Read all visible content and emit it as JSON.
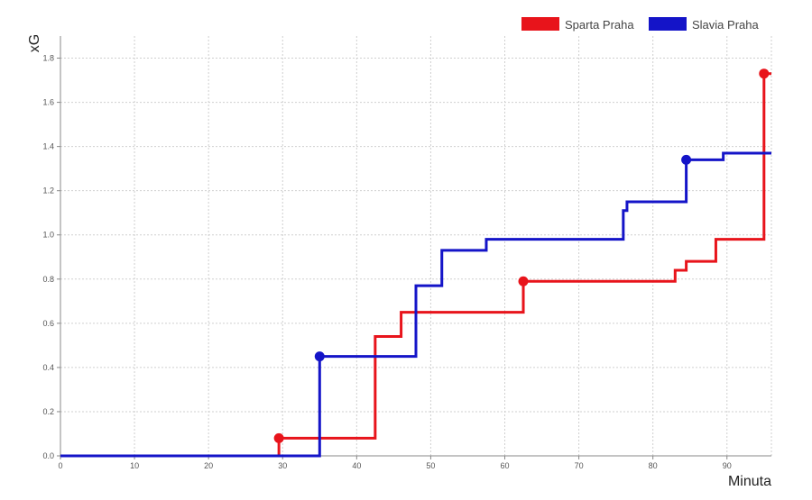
{
  "chart_data": {
    "type": "line",
    "step": true,
    "title": "",
    "xlabel": "Minuta",
    "ylabel": "xG",
    "xlim": [
      0,
      96
    ],
    "ylim": [
      0,
      1.9
    ],
    "xticks": [
      0,
      10,
      20,
      30,
      40,
      50,
      60,
      70,
      80,
      90
    ],
    "yticks": [
      0.0,
      0.2,
      0.4,
      0.6,
      0.8,
      1.0,
      1.2,
      1.4,
      1.6,
      1.8
    ],
    "x_tick_labels": [
      "0",
      "10",
      "20",
      "30",
      "40",
      "50",
      "60",
      "70",
      "80",
      "90"
    ],
    "y_tick_labels": [
      "0.0",
      "0.2",
      "0.4",
      "0.6",
      "0.8",
      "1.0",
      "1.2",
      "1.4",
      "1.6",
      "1.8"
    ],
    "grid": true,
    "legend_position": "top-right",
    "series": [
      {
        "name": "Sparta Praha",
        "color": "#e8141b",
        "x": [
          0,
          29.5,
          42.5,
          46,
          62.5,
          83,
          84.5,
          88.5,
          95
        ],
        "y": [
          0,
          0.08,
          0.54,
          0.65,
          0.79,
          0.84,
          0.88,
          0.98,
          1.73
        ],
        "end_x": 96,
        "markers": [
          {
            "x": 29.5,
            "y": 0.08
          },
          {
            "x": 62.5,
            "y": 0.79
          },
          {
            "x": 95,
            "y": 1.73
          }
        ]
      },
      {
        "name": "Slavia Praha",
        "color": "#1414c8",
        "x": [
          0,
          35,
          48,
          51.5,
          57.5,
          76,
          76.5,
          84.5,
          89.5
        ],
        "y": [
          0,
          0.45,
          0.77,
          0.93,
          0.98,
          1.11,
          1.15,
          1.34,
          1.37
        ],
        "end_x": 96,
        "markers": [
          {
            "x": 35,
            "y": 0.45
          },
          {
            "x": 84.5,
            "y": 1.34
          }
        ]
      }
    ]
  }
}
